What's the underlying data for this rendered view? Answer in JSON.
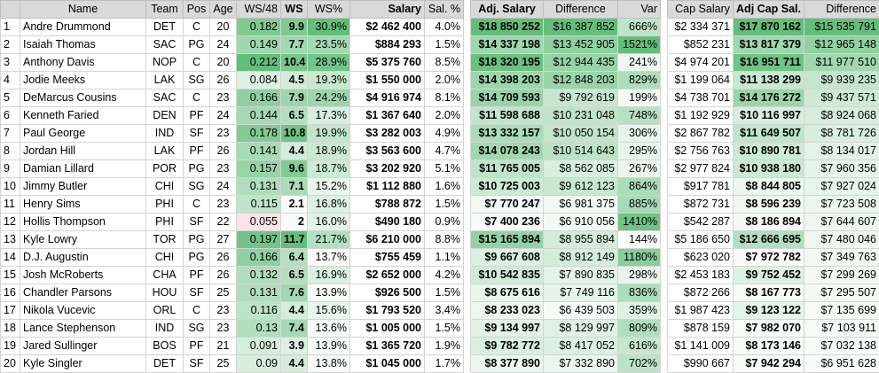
{
  "columns": {
    "idx": "",
    "name": "Name",
    "team": "Team",
    "pos": "Pos",
    "age": "Age",
    "ws48": "WS/48",
    "ws": "WS",
    "wspct": "WS%",
    "salary": "Salary",
    "salpct": "Sal. %",
    "adjsalary": "Adj. Salary",
    "difference": "Difference",
    "var": "Var",
    "capsalary": "Cap Salary",
    "adjcap": "Adj Cap Sal.",
    "difference2": "Difference"
  },
  "rows": [
    {
      "idx": "1",
      "name": "Andre Drummond",
      "team": "DET",
      "pos": "C",
      "age": "20",
      "ws48": "0.182",
      "ws": "9.9",
      "wspct": "30.9%",
      "salary": "$2 462 400",
      "salpct": "4.0%",
      "adjsalary": "$18 850 252",
      "difference": "$16 387 852",
      "var": "666%",
      "capsalary": "$2 334 371",
      "adjcap": "$17 870 162",
      "difference2": "$15 535 791"
    },
    {
      "idx": "2",
      "name": "Isaiah Thomas",
      "team": "SAC",
      "pos": "PG",
      "age": "24",
      "ws48": "0.149",
      "ws": "7.7",
      "wspct": "23.5%",
      "salary": "$884 293",
      "salpct": "1.5%",
      "adjsalary": "$14 337 198",
      "difference": "$13 452 905",
      "var": "1521%",
      "capsalary": "$852 231",
      "adjcap": "$13 817 379",
      "difference2": "$12 965 148"
    },
    {
      "idx": "3",
      "name": "Anthony Davis",
      "team": "NOP",
      "pos": "C",
      "age": "20",
      "ws48": "0.212",
      "ws": "10.4",
      "wspct": "28.9%",
      "salary": "$5 375 760",
      "salpct": "8.5%",
      "adjsalary": "$18 320 195",
      "difference": "$12 944 435",
      "var": "241%",
      "capsalary": "$4 974 201",
      "adjcap": "$16 951 711",
      "difference2": "$11 977 510"
    },
    {
      "idx": "4",
      "name": "Jodie Meeks",
      "team": "LAK",
      "pos": "SG",
      "age": "26",
      "ws48": "0.084",
      "ws": "4.5",
      "wspct": "19.3%",
      "salary": "$1 550 000",
      "salpct": "2.0%",
      "adjsalary": "$14 398 203",
      "difference": "$12 848 203",
      "var": "829%",
      "capsalary": "$1 199 064",
      "adjcap": "$11 138 299",
      "difference2": "$9 939 235"
    },
    {
      "idx": "5",
      "name": "DeMarcus Cousins",
      "team": "SAC",
      "pos": "C",
      "age": "23",
      "ws48": "0.166",
      "ws": "7.9",
      "wspct": "24.2%",
      "salary": "$4 916 974",
      "salpct": "8.1%",
      "adjsalary": "$14 709 593",
      "difference": "$9 792 619",
      "var": "199%",
      "capsalary": "$4 738 701",
      "adjcap": "$14 176 272",
      "difference2": "$9 437 571"
    },
    {
      "idx": "6",
      "name": "Kenneth Faried",
      "team": "DEN",
      "pos": "PF",
      "age": "24",
      "ws48": "0.144",
      "ws": "6.5",
      "wspct": "17.3%",
      "salary": "$1 367 640",
      "salpct": "2.0%",
      "adjsalary": "$11 598 688",
      "difference": "$10 231 048",
      "var": "748%",
      "capsalary": "$1 192 929",
      "adjcap": "$10 116 997",
      "difference2": "$8 924 068"
    },
    {
      "idx": "7",
      "name": "Paul George",
      "team": "IND",
      "pos": "SF",
      "age": "23",
      "ws48": "0.178",
      "ws": "10.8",
      "wspct": "19.9%",
      "salary": "$3 282 003",
      "salpct": "4.9%",
      "adjsalary": "$13 332 157",
      "difference": "$10 050 154",
      "var": "306%",
      "capsalary": "$2 867 782",
      "adjcap": "$11 649 507",
      "difference2": "$8 781 726"
    },
    {
      "idx": "8",
      "name": "Jordan Hill",
      "team": "LAK",
      "pos": "PF",
      "age": "26",
      "ws48": "0.141",
      "ws": "4.4",
      "wspct": "18.9%",
      "salary": "$3 563 600",
      "salpct": "4.7%",
      "adjsalary": "$14 078 243",
      "difference": "$10 514 643",
      "var": "295%",
      "capsalary": "$2 756 763",
      "adjcap": "$10 890 781",
      "difference2": "$8 134 017"
    },
    {
      "idx": "9",
      "name": "Damian Lillard",
      "team": "POR",
      "pos": "PG",
      "age": "23",
      "ws48": "0.157",
      "ws": "9.6",
      "wspct": "18.7%",
      "salary": "$3 202 920",
      "salpct": "5.1%",
      "adjsalary": "$11 765 005",
      "difference": "$8 562 085",
      "var": "267%",
      "capsalary": "$2 977 824",
      "adjcap": "$10 938 180",
      "difference2": "$7 960 356"
    },
    {
      "idx": "10",
      "name": "Jimmy Butler",
      "team": "CHI",
      "pos": "SG",
      "age": "24",
      "ws48": "0.131",
      "ws": "7.1",
      "wspct": "15.2%",
      "salary": "$1 112 880",
      "salpct": "1.6%",
      "adjsalary": "$10 725 003",
      "difference": "$9 612 123",
      "var": "864%",
      "capsalary": "$917 781",
      "adjcap": "$8 844 805",
      "difference2": "$7 927 024"
    },
    {
      "idx": "11",
      "name": "Henry Sims",
      "team": "PHI",
      "pos": "C",
      "age": "23",
      "ws48": "0.115",
      "ws": "2.1",
      "wspct": "16.8%",
      "salary": "$788 872",
      "salpct": "1.5%",
      "adjsalary": "$7 770 247",
      "difference": "$6 981 375",
      "var": "885%",
      "capsalary": "$872 731",
      "adjcap": "$8 596 239",
      "difference2": "$7 723 508"
    },
    {
      "idx": "12",
      "name": "Hollis Thompson",
      "team": "PHI",
      "pos": "SF",
      "age": "22",
      "ws48": "0.055",
      "ws": "2",
      "wspct": "16.0%",
      "salary": "$490 180",
      "salpct": "0.9%",
      "adjsalary": "$7 400 236",
      "difference": "$6 910 056",
      "var": "1410%",
      "capsalary": "$542 287",
      "adjcap": "$8 186 894",
      "difference2": "$7 644 607"
    },
    {
      "idx": "13",
      "name": "Kyle Lowry",
      "team": "TOR",
      "pos": "PG",
      "age": "27",
      "ws48": "0.197",
      "ws": "11.7",
      "wspct": "21.7%",
      "salary": "$6 210 000",
      "salpct": "8.8%",
      "adjsalary": "$15 165 894",
      "difference": "$8 955 894",
      "var": "144%",
      "capsalary": "$5 186 650",
      "adjcap": "$12 666 695",
      "difference2": "$7 480 046"
    },
    {
      "idx": "14",
      "name": "D.J. Augustin",
      "team": "CHI",
      "pos": "PG",
      "age": "26",
      "ws48": "0.166",
      "ws": "6.4",
      "wspct": "13.7%",
      "salary": "$755 459",
      "salpct": "1.1%",
      "adjsalary": "$9 667 608",
      "difference": "$8 912 149",
      "var": "1180%",
      "capsalary": "$623 020",
      "adjcap": "$7 972 782",
      "difference2": "$7 349 763"
    },
    {
      "idx": "15",
      "name": "Josh McRoberts",
      "team": "CHA",
      "pos": "PF",
      "age": "26",
      "ws48": "0.132",
      "ws": "6.5",
      "wspct": "16.9%",
      "salary": "$2 652 000",
      "salpct": "4.2%",
      "adjsalary": "$10 542 835",
      "difference": "$7 890 835",
      "var": "298%",
      "capsalary": "$2 453 183",
      "adjcap": "$9 752 452",
      "difference2": "$7 299 269"
    },
    {
      "idx": "16",
      "name": "Chandler Parsons",
      "team": "HOU",
      "pos": "SF",
      "age": "25",
      "ws48": "0.131",
      "ws": "7.6",
      "wspct": "13.9%",
      "salary": "$926 500",
      "salpct": "1.5%",
      "adjsalary": "$8 675 616",
      "difference": "$7 749 116",
      "var": "836%",
      "capsalary": "$872 266",
      "adjcap": "$8 167 773",
      "difference2": "$7 295 507"
    },
    {
      "idx": "17",
      "name": "Nikola Vucevic",
      "team": "ORL",
      "pos": "C",
      "age": "23",
      "ws48": "0.116",
      "ws": "4.4",
      "wspct": "15.6%",
      "salary": "$1 793 520",
      "salpct": "3.4%",
      "adjsalary": "$8 233 023",
      "difference": "$6 439 503",
      "var": "359%",
      "capsalary": "$1 987 423",
      "adjcap": "$9 123 122",
      "difference2": "$7 135 699"
    },
    {
      "idx": "18",
      "name": "Lance Stephenson",
      "team": "IND",
      "pos": "SG",
      "age": "23",
      "ws48": "0.13",
      "ws": "7.4",
      "wspct": "13.6%",
      "salary": "$1 005 000",
      "salpct": "1.5%",
      "adjsalary": "$9 134 997",
      "difference": "$8 129 997",
      "var": "809%",
      "capsalary": "$878 159",
      "adjcap": "$7 982 070",
      "difference2": "$7 103 911"
    },
    {
      "idx": "19",
      "name": "Jared Sullinger",
      "team": "BOS",
      "pos": "PF",
      "age": "21",
      "ws48": "0.091",
      "ws": "3.9",
      "wspct": "13.9%",
      "salary": "$1 365 720",
      "salpct": "1.9%",
      "adjsalary": "$9 782 772",
      "difference": "$8 417 052",
      "var": "616%",
      "capsalary": "$1 141 009",
      "adjcap": "$8 173 146",
      "difference2": "$7 032 138"
    },
    {
      "idx": "20",
      "name": "Kyle Singler",
      "team": "DET",
      "pos": "SF",
      "age": "25",
      "ws48": "0.09",
      "ws": "4.4",
      "wspct": "13.8%",
      "salary": "$1 045 000",
      "salpct": "1.7%",
      "adjsalary": "$8 377 890",
      "difference": "$7 332 890",
      "var": "702%",
      "capsalary": "$990 667",
      "adjcap": "$7 942 294",
      "difference2": "$6 951 628"
    }
  ]
}
